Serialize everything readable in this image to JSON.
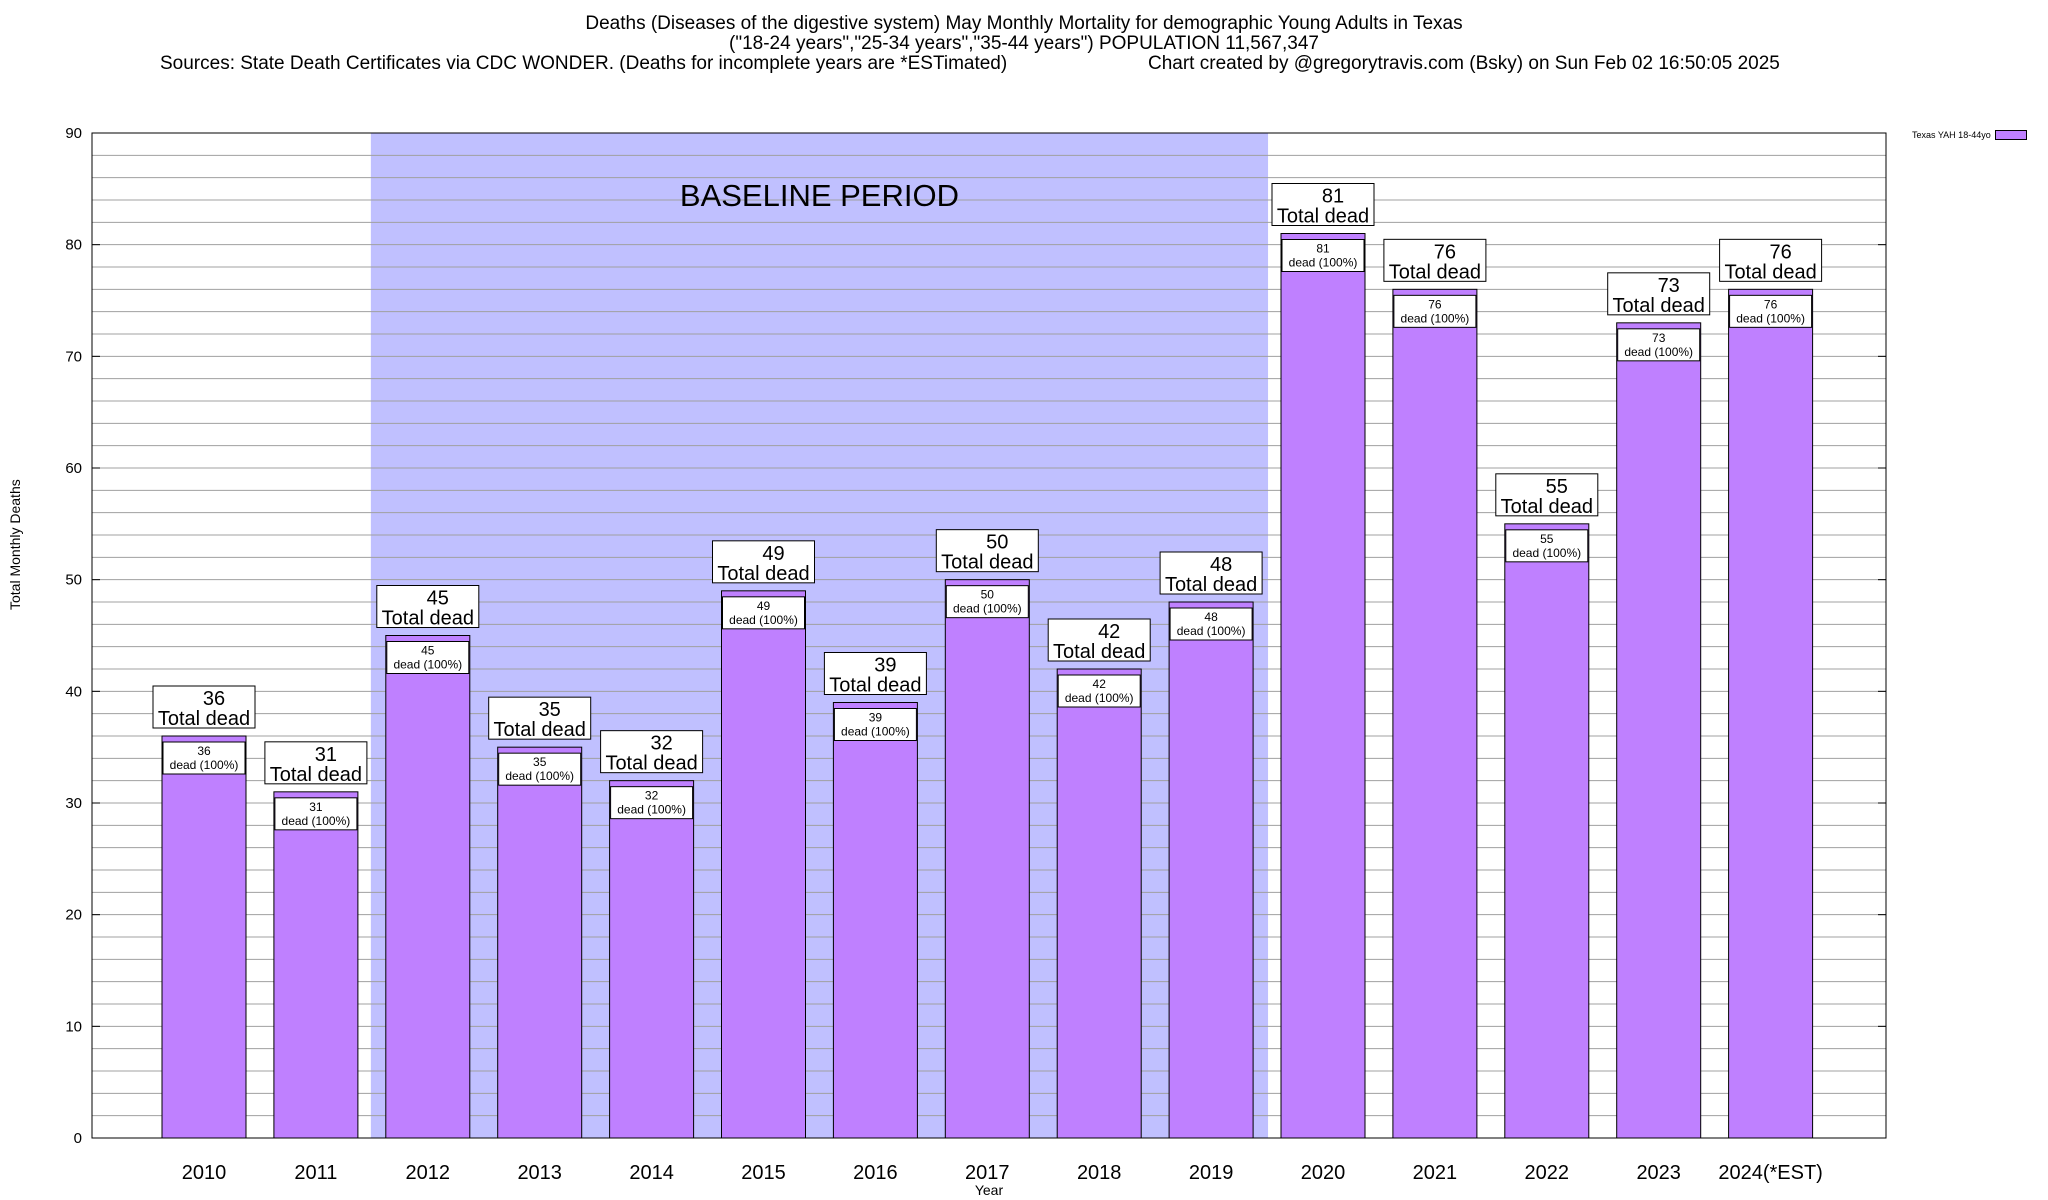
{
  "title": {
    "line1": "Deaths (Diseases of the digestive system) May Monthly Mortality for demographic Young Adults in Texas",
    "line2": "(\"18-24 years\",\"25-34 years\",\"35-44 years\") POPULATION 11,567,347",
    "source": "Sources: State Death Certificates via CDC WONDER. (Deaths for incomplete years are *ESTimated)",
    "credit": "Chart created by @gregorytravis.com (Bsky) on Sun Feb 02 16:50:05 2025"
  },
  "legend": {
    "label": "Texas YAH 18-44yo",
    "color": "#bf80ff"
  },
  "annotation": "BASELINE PERIOD",
  "colors": {
    "bar": "#bf80ff",
    "baseline": "#c0c0ff"
  },
  "chart_data": {
    "type": "bar",
    "categories": [
      "2010",
      "2011",
      "2012",
      "2013",
      "2014",
      "2015",
      "2016",
      "2017",
      "2018",
      "2019",
      "2020",
      "2021",
      "2022",
      "2023",
      "2024(*EST)"
    ],
    "values": [
      36,
      31,
      45,
      35,
      32,
      49,
      39,
      50,
      42,
      48,
      81,
      76,
      55,
      73,
      76
    ],
    "series": [
      {
        "name": "Texas YAH 18-44yo",
        "values": [
          36,
          31,
          45,
          35,
          32,
          49,
          39,
          50,
          42,
          48,
          81,
          76,
          55,
          73,
          76
        ]
      }
    ],
    "xlabel": "Year",
    "ylabel": "Total Monthly Deaths",
    "ylim": [
      0,
      90
    ],
    "yticks": [
      0,
      10,
      20,
      30,
      40,
      50,
      60,
      70,
      80,
      90
    ],
    "grid": true,
    "baseline_period": [
      "2012",
      "2019"
    ],
    "top_label_suffix": "Total dead",
    "inner_label_suffix": "dead (100%)",
    "legend_position": "top-right"
  }
}
